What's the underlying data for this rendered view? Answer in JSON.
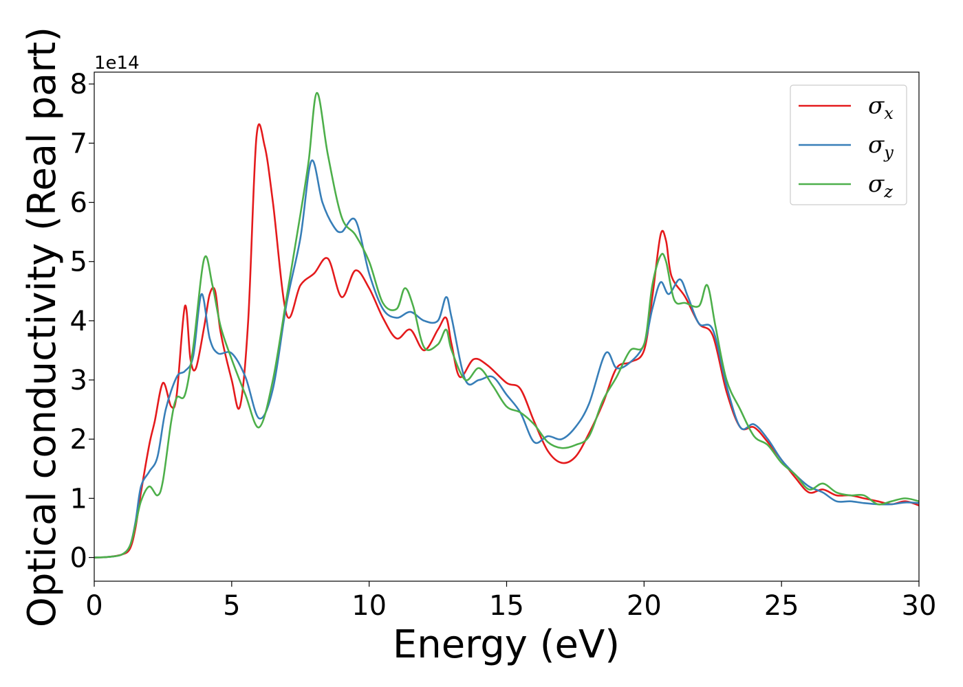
{
  "chart_data": {
    "type": "line",
    "xlabel": "Energy (eV)",
    "ylabel": "Optical conductivity (Real part)",
    "y_offset_text": "1e14",
    "xlim": [
      0,
      30
    ],
    "ylim": [
      -0.4,
      8.2
    ],
    "y_scale_factor": 100000000000000.0,
    "xticks": [
      0,
      5,
      10,
      15,
      20,
      25,
      30
    ],
    "yticks": [
      0,
      1,
      2,
      3,
      4,
      5,
      6,
      7,
      8
    ],
    "grid": false,
    "legend_position": "upper right",
    "series": [
      {
        "name": "σx",
        "symbol": "σ",
        "subscript": "x",
        "color": "#e41a1c",
        "x": [
          0,
          0.5,
          1.0,
          1.3,
          1.5,
          1.7,
          2.0,
          2.2,
          2.5,
          2.8,
          3.0,
          3.3,
          3.5,
          3.7,
          4.0,
          4.2,
          4.4,
          4.6,
          5.0,
          5.3,
          5.6,
          5.9,
          6.2,
          6.5,
          7.0,
          7.5,
          8.0,
          8.5,
          9.0,
          9.5,
          10.0,
          10.5,
          11.0,
          11.5,
          12.0,
          12.5,
          12.8,
          13.0,
          13.3,
          13.8,
          14.3,
          15.0,
          15.5,
          16.0,
          16.5,
          17.0,
          17.5,
          18.0,
          18.5,
          19.0,
          19.5,
          20.0,
          20.3,
          20.6,
          20.8,
          21.0,
          21.5,
          22.0,
          22.5,
          23.0,
          23.5,
          24.0,
          24.5,
          25.0,
          25.5,
          26.0,
          26.5,
          27.0,
          27.5,
          28.0,
          28.5,
          29.0,
          29.5,
          30.0
        ],
        "values": [
          0,
          0.01,
          0.05,
          0.15,
          0.5,
          1.1,
          1.9,
          2.3,
          2.95,
          2.55,
          2.75,
          4.25,
          3.35,
          3.2,
          3.9,
          4.45,
          4.5,
          3.8,
          3.0,
          2.55,
          4.0,
          7.1,
          6.95,
          6.0,
          4.1,
          4.6,
          4.8,
          5.05,
          4.4,
          4.85,
          4.55,
          4.05,
          3.7,
          3.85,
          3.5,
          3.85,
          4.05,
          3.6,
          3.05,
          3.35,
          3.25,
          2.95,
          2.85,
          2.3,
          1.8,
          1.6,
          1.7,
          2.1,
          2.6,
          3.2,
          3.3,
          3.5,
          4.4,
          5.45,
          5.35,
          4.75,
          4.4,
          3.95,
          3.75,
          2.8,
          2.2,
          2.2,
          1.95,
          1.65,
          1.35,
          1.1,
          1.15,
          1.05,
          1.05,
          1.0,
          0.95,
          0.9,
          0.95,
          0.88
        ]
      },
      {
        "name": "σy",
        "symbol": "σ",
        "subscript": "y",
        "color": "#377eb8",
        "x": [
          0,
          0.5,
          1.0,
          1.3,
          1.5,
          1.7,
          2.0,
          2.3,
          2.6,
          3.0,
          3.3,
          3.6,
          3.9,
          4.2,
          4.5,
          5.0,
          5.5,
          6.0,
          6.5,
          7.0,
          7.5,
          7.9,
          8.3,
          8.7,
          9.0,
          9.5,
          10.0,
          10.5,
          11.0,
          11.5,
          12.0,
          12.5,
          12.8,
          13.0,
          13.5,
          14.0,
          14.5,
          15.0,
          15.5,
          16.0,
          16.5,
          17.0,
          17.5,
          18.0,
          18.6,
          19.0,
          19.5,
          20.0,
          20.3,
          20.6,
          20.9,
          21.3,
          21.6,
          22.0,
          22.5,
          23.0,
          23.5,
          24.0,
          24.5,
          25.0,
          25.5,
          26.0,
          26.5,
          27.0,
          27.5,
          28.0,
          28.5,
          29.0,
          29.5,
          30.0
        ],
        "values": [
          0,
          0.01,
          0.05,
          0.2,
          0.6,
          1.2,
          1.45,
          1.7,
          2.5,
          3.05,
          3.15,
          3.4,
          4.45,
          3.7,
          3.45,
          3.45,
          3.05,
          2.35,
          2.85,
          4.3,
          5.4,
          6.7,
          6.0,
          5.6,
          5.5,
          5.7,
          4.8,
          4.2,
          4.05,
          4.15,
          4.0,
          4.0,
          4.4,
          4.05,
          3.0,
          3.0,
          3.05,
          2.75,
          2.45,
          1.95,
          2.05,
          2.0,
          2.2,
          2.6,
          3.45,
          3.2,
          3.3,
          3.6,
          4.2,
          4.65,
          4.45,
          4.7,
          4.4,
          3.95,
          3.85,
          2.9,
          2.2,
          2.25,
          2.0,
          1.65,
          1.4,
          1.2,
          1.1,
          0.95,
          0.95,
          0.92,
          0.9,
          0.9,
          0.93,
          0.92
        ]
      },
      {
        "name": "σz",
        "symbol": "σ",
        "subscript": "z",
        "color": "#4daf4a",
        "x": [
          0,
          0.5,
          1.0,
          1.3,
          1.5,
          1.7,
          2.0,
          2.3,
          2.5,
          2.8,
          3.0,
          3.3,
          3.6,
          4.0,
          4.3,
          4.6,
          5.0,
          5.5,
          6.0,
          6.5,
          7.0,
          7.5,
          7.8,
          8.1,
          8.5,
          9.0,
          9.5,
          10.0,
          10.5,
          11.0,
          11.3,
          11.6,
          12.0,
          12.5,
          12.8,
          13.0,
          13.5,
          14.0,
          14.5,
          15.0,
          15.5,
          16.0,
          16.5,
          17.0,
          17.5,
          18.0,
          18.5,
          19.0,
          19.5,
          20.0,
          20.3,
          20.6,
          20.8,
          21.1,
          21.5,
          22.0,
          22.3,
          22.6,
          23.0,
          23.5,
          24.0,
          24.5,
          25.0,
          25.5,
          26.0,
          26.5,
          27.0,
          27.5,
          28.0,
          28.5,
          29.0,
          29.5,
          30.0
        ],
        "values": [
          0,
          0.01,
          0.05,
          0.2,
          0.55,
          0.95,
          1.2,
          1.05,
          1.3,
          2.3,
          2.7,
          2.75,
          3.55,
          5.05,
          4.6,
          3.9,
          3.35,
          2.75,
          2.2,
          3.0,
          4.4,
          5.8,
          6.7,
          7.85,
          6.8,
          5.75,
          5.45,
          5.0,
          4.3,
          4.2,
          4.55,
          4.25,
          3.55,
          3.6,
          3.85,
          3.5,
          3.0,
          3.2,
          2.9,
          2.55,
          2.45,
          2.25,
          1.95,
          1.85,
          1.9,
          2.05,
          2.65,
          3.05,
          3.5,
          3.6,
          4.6,
          5.1,
          5.0,
          4.35,
          4.3,
          4.25,
          4.6,
          3.9,
          3.0,
          2.5,
          2.05,
          1.9,
          1.6,
          1.4,
          1.15,
          1.25,
          1.1,
          1.05,
          1.05,
          0.9,
          0.95,
          1.0,
          0.95
        ]
      }
    ]
  }
}
